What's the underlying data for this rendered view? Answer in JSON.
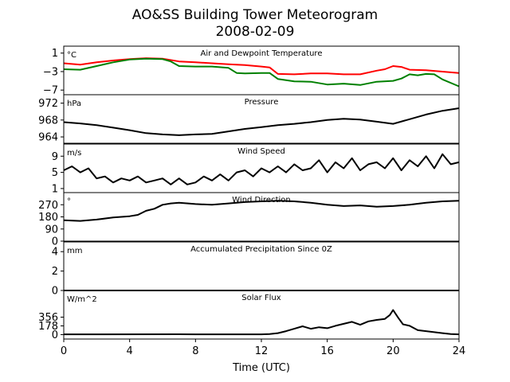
{
  "figure": {
    "title_line1": "AO&SS Building Tower Meteorogram",
    "title_line2": "2008-02-09",
    "xlabel": "Time (UTC)",
    "x_ticks": [
      "0",
      "4",
      "8",
      "12",
      "16",
      "20",
      "24"
    ],
    "xlim": [
      0,
      24
    ]
  },
  "chart_data": [
    {
      "type": "line",
      "title": "Air and Dewpoint Temperature",
      "unit": "°C",
      "ylim": [
        -8,
        2.5
      ],
      "y_ticks": [
        1,
        -3,
        -7
      ],
      "y_tick_labels": [
        "1",
        "−3",
        "−7"
      ],
      "series": [
        {
          "color": "#ff0000",
          "x": [
            0,
            1,
            2,
            3,
            4,
            5,
            6,
            7,
            8,
            9,
            10,
            11,
            12,
            12.5,
            13,
            14,
            15,
            16,
            17,
            18,
            19,
            19.5,
            20,
            20.5,
            21,
            22,
            23,
            24
          ],
          "values": [
            -1.2,
            -1.5,
            -1,
            -0.6,
            -0.3,
            -0.1,
            -0.2,
            -0.8,
            -1,
            -1.2,
            -1.4,
            -1.6,
            -1.9,
            -2.1,
            -3.5,
            -3.6,
            -3.4,
            -3.4,
            -3.6,
            -3.6,
            -2.8,
            -2.5,
            -1.8,
            -2,
            -2.6,
            -2.7,
            -3,
            -3.3
          ]
        },
        {
          "color": "#008000",
          "x": [
            0,
            1,
            2,
            3,
            4,
            5,
            6,
            6.5,
            7,
            8,
            9,
            10,
            10.5,
            11,
            12,
            12.5,
            13,
            14,
            15,
            16,
            17,
            18,
            19,
            20,
            20.5,
            21,
            21.5,
            22,
            22.5,
            23,
            24
          ],
          "values": [
            -2.5,
            -2.6,
            -1.8,
            -1,
            -0.4,
            -0.2,
            -0.3,
            -0.8,
            -1.8,
            -1.9,
            -1.9,
            -2.2,
            -3.3,
            -3.4,
            -3.3,
            -3.3,
            -4.6,
            -5.1,
            -5.2,
            -5.8,
            -5.6,
            -5.9,
            -5.2,
            -5,
            -4.5,
            -3.6,
            -3.8,
            -3.5,
            -3.6,
            -4.7,
            -6.2
          ]
        }
      ]
    },
    {
      "type": "line",
      "title": "Pressure",
      "unit": "hPa",
      "ylim": [
        962.5,
        974
      ],
      "y_ticks": [
        972,
        968,
        964
      ],
      "y_tick_labels": [
        "972",
        "968",
        "964"
      ],
      "series": [
        {
          "color": "#000000",
          "x": [
            0,
            1,
            2,
            3,
            4,
            5,
            6,
            7,
            8,
            9,
            10,
            11,
            12,
            13,
            14,
            15,
            16,
            17,
            18,
            19,
            20,
            21,
            22,
            23,
            24
          ],
          "values": [
            967.5,
            967.2,
            966.8,
            966.2,
            965.6,
            964.9,
            964.6,
            964.4,
            964.6,
            964.7,
            965.3,
            965.9,
            966.3,
            966.8,
            967.1,
            967.5,
            968,
            968.3,
            968.1,
            967.6,
            967.1,
            968.2,
            969.3,
            970.2,
            970.8
          ]
        }
      ]
    },
    {
      "type": "line",
      "title": "Wind Speed",
      "unit": "m/s",
      "ylim": [
        0,
        12
      ],
      "y_ticks": [
        9,
        5,
        1
      ],
      "y_tick_labels": [
        "9",
        "5",
        "1"
      ],
      "series": [
        {
          "color": "#000000",
          "x": [
            0,
            0.5,
            1,
            1.5,
            2,
            2.5,
            3,
            3.5,
            4,
            4.5,
            5,
            5.5,
            6,
            6.5,
            7,
            7.5,
            8,
            8.5,
            9,
            9.5,
            10,
            10.5,
            11,
            11.5,
            12,
            12.5,
            13,
            13.5,
            14,
            14.5,
            15,
            15.5,
            16,
            16.5,
            17,
            17.5,
            18,
            18.5,
            19,
            19.5,
            20,
            20.5,
            21,
            21.5,
            22,
            22.5,
            23,
            23.5,
            24
          ],
          "values": [
            5.5,
            6.5,
            5,
            6,
            3.5,
            4,
            2.5,
            3.5,
            3,
            4,
            2.5,
            3,
            3.5,
            2,
            3.5,
            2,
            2.5,
            4,
            3,
            4.5,
            3,
            5,
            5.5,
            4,
            6,
            5,
            6.5,
            5,
            7,
            5.5,
            6,
            8,
            5,
            7.5,
            6,
            8.5,
            5.5,
            7,
            7.5,
            6,
            8.5,
            5.5,
            8,
            6.5,
            9,
            6,
            9.5,
            7,
            7.5
          ]
        }
      ]
    },
    {
      "type": "line",
      "title": "Wind Direction",
      "unit": "°",
      "ylim": [
        0,
        360
      ],
      "y_ticks": [
        270,
        180,
        90,
        0
      ],
      "y_tick_labels": [
        "270",
        "180",
        "90",
        "0"
      ],
      "series": [
        {
          "color": "#000000",
          "x": [
            0,
            1,
            2,
            3,
            4,
            4.5,
            5,
            5.5,
            6,
            6.5,
            7,
            8,
            9,
            10,
            11,
            12,
            13,
            14,
            15,
            16,
            17,
            18,
            19,
            20,
            21,
            22,
            23,
            24
          ],
          "values": [
            155,
            150,
            160,
            175,
            185,
            195,
            225,
            240,
            270,
            280,
            285,
            275,
            270,
            280,
            290,
            295,
            300,
            295,
            285,
            270,
            260,
            265,
            255,
            260,
            270,
            285,
            295,
            300
          ]
        }
      ]
    },
    {
      "type": "line",
      "title": "Accumulated Precipitation Since 0Z",
      "unit": "mm",
      "ylim": [
        0,
        5
      ],
      "y_ticks": [
        4,
        2,
        0
      ],
      "y_tick_labels": [
        "4",
        "2",
        "0"
      ],
      "series": [
        {
          "color": "#000000",
          "x": [
            0,
            24
          ],
          "values": [
            0,
            0
          ]
        }
      ]
    },
    {
      "type": "line",
      "title": "Solar Flux",
      "unit": "W/m^2",
      "ylim": [
        -90,
        900
      ],
      "y_ticks": [
        356,
        178,
        0
      ],
      "y_tick_labels": [
        "356",
        "178",
        "0"
      ],
      "series": [
        {
          "color": "#000000",
          "x": [
            0,
            7,
            8,
            9,
            10,
            11,
            12,
            12.5,
            13,
            13.5,
            14,
            14.5,
            15,
            15.5,
            16,
            16.5,
            17,
            17.5,
            18,
            18.5,
            19,
            19.5,
            19.8,
            20,
            20.3,
            20.6,
            21,
            21.5,
            22,
            22.5,
            23,
            23.5,
            24
          ],
          "values": [
            5,
            8,
            5,
            5,
            5,
            5,
            5,
            10,
            30,
            70,
            120,
            170,
            120,
            150,
            130,
            180,
            220,
            260,
            200,
            270,
            300,
            320,
            400,
            500,
            350,
            210,
            180,
            90,
            70,
            50,
            30,
            10,
            5
          ]
        }
      ]
    }
  ]
}
